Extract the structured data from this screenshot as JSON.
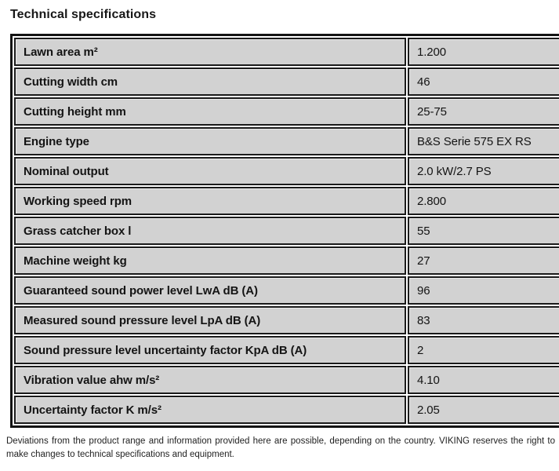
{
  "title": "Technical specifications",
  "table": {
    "rows": [
      {
        "label": "Lawn area m²",
        "value": "1.200"
      },
      {
        "label": "Cutting width cm",
        "value": "46"
      },
      {
        "label": "Cutting height mm",
        "value": "25-75"
      },
      {
        "label": "Engine type",
        "value": "B&S Serie 575 EX RS"
      },
      {
        "label": "Nominal output",
        "value": "2.0 kW/2.7 PS"
      },
      {
        "label": "Working speed rpm",
        "value": "2.800"
      },
      {
        "label": "Grass catcher box l",
        "value": "55"
      },
      {
        "label": "Machine weight kg",
        "value": "27"
      },
      {
        "label": "Guaranteed sound power level LwA dB (A)",
        "value": "96"
      },
      {
        "label": "Measured sound pressure level LpA dB (A)",
        "value": "83"
      },
      {
        "label": "Sound pressure level uncertainty factor KpA dB (A)",
        "value": "2"
      },
      {
        "label": "Vibration value ahw m/s²",
        "value": "4.10"
      },
      {
        "label": "Uncertainty factor K m/s²",
        "value": "2.05"
      }
    ]
  },
  "footer": "Deviations from the product range and information provided here are possible, depending on the country. VIKING reserves the right to make changes to technical specifications and equipment.",
  "colors": {
    "cell_background": "#d2d2d2",
    "border": "#141414",
    "page_background": "#ffffff",
    "text": "#1a1a1a"
  }
}
